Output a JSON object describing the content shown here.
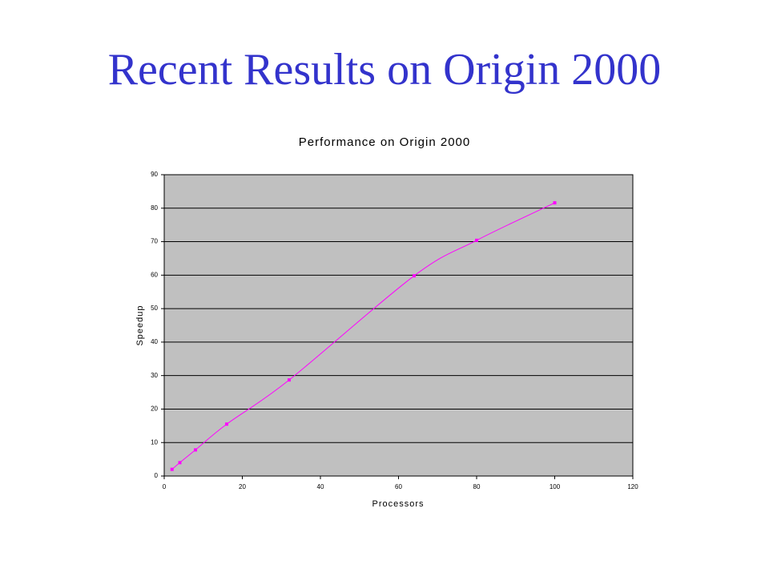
{
  "title": "Recent Results on Origin 2000",
  "chart_data": {
    "type": "line",
    "title": "Performance on Origin 2000",
    "x_label": "Processors",
    "y_label": "Speedup",
    "x": [
      2,
      4,
      8,
      16,
      32,
      64,
      80,
      100
    ],
    "values": [
      2,
      4,
      7.8,
      15.5,
      28.7,
      59.8,
      70.4,
      81.6
    ],
    "color": "#ff00ff",
    "background": "#c0c0c0",
    "grid": true,
    "xlim": [
      0,
      120
    ],
    "xticks": [
      0,
      20,
      40,
      60,
      80,
      100,
      120
    ],
    "ylim": [
      0,
      90
    ],
    "yticks": [
      0,
      10,
      20,
      30,
      40,
      50,
      60,
      70,
      80,
      90
    ]
  }
}
